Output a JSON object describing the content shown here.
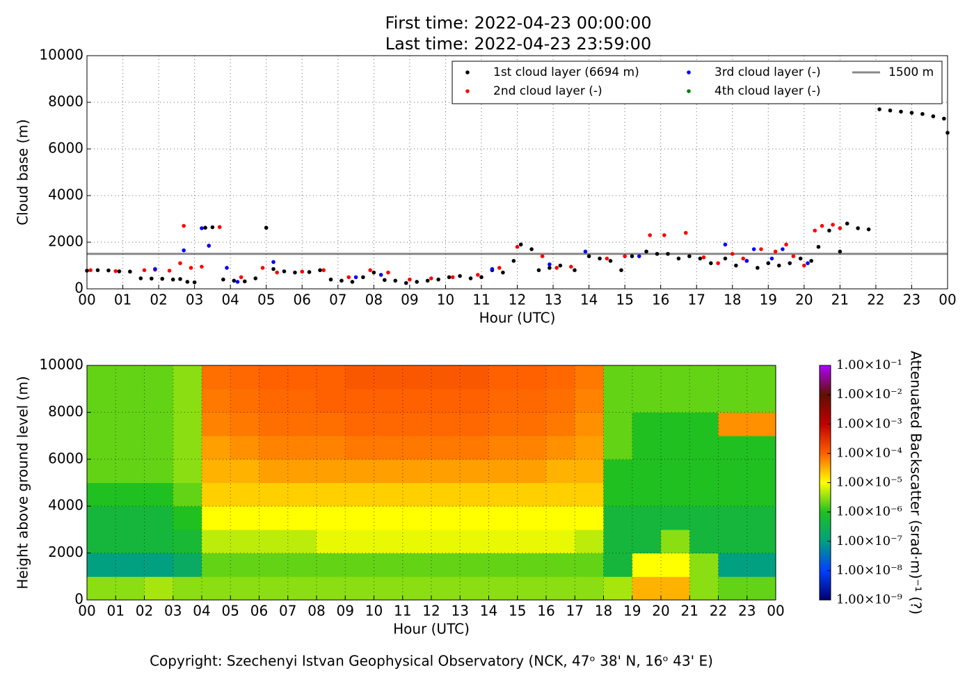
{
  "title_lines": [
    "First time: 2022-04-23 00:00:00",
    "Last time: 2022-04-23 23:59:00"
  ],
  "footer": "Copyright: Szechenyi Istvan Geophysical Observatory (NCK, 47ᵒ  38' N, 16ᵒ  43' E)",
  "chart_data": [
    {
      "type": "scatter",
      "xlabel": "Hour (UTC)",
      "ylabel": "Cloud base (m)",
      "xlim": [
        0,
        24
      ],
      "ylim": [
        0,
        10000
      ],
      "xticks": [
        {
          "value": 0,
          "label": "00"
        },
        {
          "value": 1,
          "label": "01"
        },
        {
          "value": 2,
          "label": "02"
        },
        {
          "value": 3,
          "label": "03"
        },
        {
          "value": 4,
          "label": "04"
        },
        {
          "value": 5,
          "label": "05"
        },
        {
          "value": 6,
          "label": "06"
        },
        {
          "value": 7,
          "label": "07"
        },
        {
          "value": 8,
          "label": "08"
        },
        {
          "value": 9,
          "label": "09"
        },
        {
          "value": 10,
          "label": "10"
        },
        {
          "value": 11,
          "label": "11"
        },
        {
          "value": 12,
          "label": "12"
        },
        {
          "value": 13,
          "label": "13"
        },
        {
          "value": 14,
          "label": "14"
        },
        {
          "value": 15,
          "label": "15"
        },
        {
          "value": 16,
          "label": "16"
        },
        {
          "value": 17,
          "label": "17"
        },
        {
          "value": 18,
          "label": "18"
        },
        {
          "value": 19,
          "label": "19"
        },
        {
          "value": 20,
          "label": "20"
        },
        {
          "value": 21,
          "label": "21"
        },
        {
          "value": 22,
          "label": "22"
        },
        {
          "value": 23,
          "label": "23"
        },
        {
          "value": 24,
          "label": "00"
        }
      ],
      "yticks": [
        0,
        2000,
        4000,
        6000,
        8000,
        10000
      ],
      "grid": true,
      "legend": "upper right",
      "reference_line": {
        "value": 1500,
        "label": "1500 m",
        "color": "#888888"
      },
      "series": [
        {
          "name": "1st cloud layer (6694 m)",
          "color": "#000000",
          "x": [
            0,
            0.3,
            0.6,
            0.9,
            1.2,
            1.5,
            1.8,
            2.1,
            2.4,
            2.6,
            2.8,
            3.0,
            3.3,
            3.5,
            3.8,
            4.1,
            4.4,
            4.7,
            5.0,
            5.2,
            5.5,
            5.8,
            6.2,
            6.5,
            6.8,
            7.1,
            7.4,
            7.7,
            8.0,
            8.3,
            8.6,
            8.9,
            9.2,
            9.5,
            9.8,
            10.1,
            10.4,
            10.7,
            11.0,
            11.3,
            11.6,
            11.9,
            12.1,
            12.4,
            12.6,
            12.9,
            13.2,
            13.6,
            14.0,
            14.3,
            14.6,
            14.9,
            15.2,
            15.6,
            15.9,
            16.2,
            16.5,
            16.8,
            17.1,
            17.4,
            17.8,
            18.1,
            18.4,
            18.7,
            19.0,
            19.3,
            19.6,
            19.9,
            20.2,
            20.4,
            20.7,
            21.0,
            21.2,
            21.5,
            21.8,
            22.1,
            22.4,
            22.7,
            23.0,
            23.3,
            23.6,
            23.9,
            24.0
          ],
          "values": [
            780,
            800,
            790,
            750,
            740,
            450,
            440,
            430,
            400,
            420,
            300,
            280,
            2620,
            2640,
            400,
            350,
            320,
            450,
            2620,
            850,
            750,
            700,
            720,
            800,
            400,
            350,
            300,
            500,
            700,
            380,
            350,
            250,
            300,
            350,
            400,
            500,
            550,
            450,
            500,
            800,
            700,
            1200,
            1900,
            1700,
            800,
            900,
            1000,
            800,
            1400,
            1300,
            1200,
            800,
            1400,
            1600,
            1500,
            1500,
            1300,
            1400,
            1300,
            1100,
            1300,
            1000,
            1200,
            900,
            1100,
            1000,
            1100,
            1300,
            1200,
            1800,
            2500,
            1600,
            2800,
            2600,
            2550,
            7700,
            7650,
            7600,
            7550,
            7500,
            7400,
            7300,
            6694
          ]
        },
        {
          "name": "2nd cloud layer (-)",
          "color": "#ff0000",
          "x": [
            0.1,
            0.8,
            1.6,
            1.9,
            2.3,
            2.6,
            2.7,
            2.9,
            3.2,
            3.4,
            3.7,
            4.3,
            4.9,
            5.3,
            6.0,
            6.6,
            7.3,
            7.9,
            8.4,
            9.0,
            9.6,
            10.2,
            10.9,
            11.5,
            12.0,
            12.7,
            13.1,
            13.5,
            14.5,
            15.0,
            15.7,
            16.1,
            16.7,
            17.2,
            17.6,
            18.0,
            18.3,
            18.8,
            19.2,
            19.5,
            19.7,
            20.0,
            20.3,
            20.5,
            20.8,
            21.0
          ],
          "values": [
            800,
            760,
            800,
            820,
            780,
            1100,
            2700,
            900,
            950,
            1850,
            2650,
            500,
            900,
            700,
            740,
            800,
            500,
            800,
            700,
            400,
            450,
            500,
            600,
            900,
            1800,
            1400,
            900,
            950,
            1300,
            1400,
            2300,
            2300,
            2400,
            1350,
            1100,
            1500,
            1300,
            1700,
            1600,
            1900,
            1400,
            1000,
            2500,
            2700,
            2750,
            2600
          ]
        },
        {
          "name": "3rd cloud layer (-)",
          "color": "#0000ff",
          "x": [
            1.9,
            2.7,
            3.2,
            3.4,
            3.9,
            4.2,
            5.2,
            7.5,
            8.2,
            11.3,
            12.9,
            13.9,
            15.4,
            17.8,
            18.4,
            18.6,
            19.1,
            19.4,
            20.1
          ],
          "values": [
            850,
            1650,
            2600,
            1850,
            900,
            300,
            1150,
            500,
            600,
            850,
            1050,
            1600,
            1400,
            1900,
            1200,
            1700,
            1300,
            1700,
            1100
          ]
        },
        {
          "name": "4th cloud layer (-)",
          "color": "#008000",
          "x": [],
          "values": []
        }
      ]
    },
    {
      "type": "heatmap",
      "xlabel": "Hour (UTC)",
      "ylabel": "Height above ground level (m)",
      "xlim": [
        0,
        24
      ],
      "ylim": [
        0,
        10000
      ],
      "xticks": [
        {
          "value": 0,
          "label": "00"
        },
        {
          "value": 1,
          "label": "01"
        },
        {
          "value": 2,
          "label": "02"
        },
        {
          "value": 3,
          "label": "03"
        },
        {
          "value": 4,
          "label": "04"
        },
        {
          "value": 5,
          "label": "05"
        },
        {
          "value": 6,
          "label": "06"
        },
        {
          "value": 7,
          "label": "07"
        },
        {
          "value": 8,
          "label": "08"
        },
        {
          "value": 9,
          "label": "09"
        },
        {
          "value": 10,
          "label": "10"
        },
        {
          "value": 11,
          "label": "11"
        },
        {
          "value": 12,
          "label": "12"
        },
        {
          "value": 13,
          "label": "13"
        },
        {
          "value": 14,
          "label": "14"
        },
        {
          "value": 15,
          "label": "15"
        },
        {
          "value": 16,
          "label": "16"
        },
        {
          "value": 17,
          "label": "17"
        },
        {
          "value": 18,
          "label": "18"
        },
        {
          "value": 19,
          "label": "19"
        },
        {
          "value": 20,
          "label": "20"
        },
        {
          "value": 21,
          "label": "21"
        },
        {
          "value": 22,
          "label": "22"
        },
        {
          "value": 23,
          "label": "23"
        },
        {
          "value": 24,
          "label": "00"
        }
      ],
      "yticks": [
        0,
        2000,
        4000,
        6000,
        8000,
        10000
      ],
      "grid": true,
      "xbins": [
        0,
        1,
        2,
        3,
        4,
        5,
        6,
        7,
        8,
        9,
        10,
        11,
        12,
        13,
        14,
        15,
        16,
        17,
        18,
        19,
        20,
        21,
        22,
        23,
        24
      ],
      "ybins": [
        0,
        1000,
        2000,
        3000,
        4000,
        5000,
        6000,
        7000,
        8000,
        9000,
        10000
      ],
      "z": [
        [
          3e-06,
          3e-06,
          4e-06,
          3e-06,
          3e-06,
          3e-06,
          3e-06,
          3e-06,
          3e-06,
          3e-06,
          3e-06,
          3e-06,
          3e-06,
          3e-06,
          3e-06,
          3e-06,
          3e-06,
          3e-06,
          4e-06,
          3e-05,
          3e-05,
          3e-06,
          2e-06,
          2e-06
        ],
        [
          1e-07,
          1e-07,
          1e-07,
          2e-07,
          2e-06,
          2e-06,
          2e-06,
          2e-06,
          2e-06,
          2e-06,
          2e-06,
          2e-06,
          2e-06,
          2e-06,
          2e-06,
          2e-06,
          2e-06,
          2e-06,
          5e-07,
          1e-05,
          1e-05,
          3e-06,
          1e-07,
          1e-07
        ],
        [
          5e-07,
          5e-07,
          5e-07,
          6e-07,
          5e-06,
          5e-06,
          5e-06,
          5e-06,
          8e-06,
          8e-06,
          8e-06,
          8e-06,
          8e-06,
          8e-06,
          8e-06,
          8e-06,
          8e-06,
          5e-06,
          5e-07,
          5e-07,
          3e-06,
          5e-07,
          5e-07,
          5e-07
        ],
        [
          5e-07,
          5e-07,
          5e-07,
          1e-06,
          1e-05,
          1e-05,
          1e-05,
          1e-05,
          1e-05,
          1e-05,
          1e-05,
          1e-05,
          1e-05,
          1e-05,
          1e-05,
          1e-05,
          1e-05,
          1e-05,
          5e-07,
          5e-07,
          5e-07,
          5e-07,
          5e-07,
          5e-07
        ],
        [
          1e-06,
          1e-06,
          1e-06,
          2e-06,
          2e-05,
          2e-05,
          2e-05,
          2e-05,
          2e-05,
          2e-05,
          2e-05,
          2e-05,
          2e-05,
          2e-05,
          2e-05,
          2e-05,
          2e-05,
          2e-05,
          1e-06,
          1e-06,
          1e-06,
          1e-06,
          1e-06,
          1e-06
        ],
        [
          2e-06,
          2e-06,
          2e-06,
          3e-06,
          3e-05,
          3e-05,
          4e-05,
          4e-05,
          4e-05,
          4e-05,
          4e-05,
          4e-05,
          4e-05,
          4e-05,
          4e-05,
          4e-05,
          3e-05,
          3e-05,
          1e-06,
          1e-06,
          1e-06,
          1e-06,
          1e-06,
          1e-06
        ],
        [
          2e-06,
          2e-06,
          2e-06,
          3e-06,
          4e-05,
          5e-05,
          6e-05,
          6e-05,
          6e-05,
          7e-05,
          7e-05,
          7e-05,
          7e-05,
          7e-05,
          6e-05,
          6e-05,
          5e-05,
          4e-05,
          2e-06,
          1e-06,
          1e-06,
          1e-06,
          1e-06,
          1e-06
        ],
        [
          2e-06,
          2e-06,
          2e-06,
          3e-06,
          6e-05,
          7e-05,
          8e-05,
          8e-05,
          8e-05,
          9e-05,
          9e-05,
          9e-05,
          9e-05,
          9e-05,
          8e-05,
          8e-05,
          7e-05,
          5e-05,
          2e-06,
          1e-06,
          1e-06,
          1e-06,
          5e-05,
          5e-05
        ],
        [
          2e-06,
          2e-06,
          2e-06,
          3e-06,
          7e-05,
          8e-05,
          9e-05,
          9e-05,
          0.0001,
          0.0001,
          0.0001,
          0.0001,
          0.0001,
          0.0001,
          9e-05,
          9e-05,
          8e-05,
          6e-05,
          2e-06,
          2e-06,
          2e-06,
          2e-06,
          2e-06,
          2e-06
        ],
        [
          2e-06,
          2e-06,
          2e-06,
          3e-06,
          8e-05,
          9e-05,
          0.0001,
          0.0001,
          0.0001,
          0.00012,
          0.00012,
          0.00012,
          0.00012,
          0.00012,
          0.0001,
          0.0001,
          9e-05,
          7e-05,
          2e-06,
          2e-06,
          2e-06,
          2e-06,
          2e-06,
          2e-06
        ]
      ],
      "colorbar": {
        "label": "Attenuated Backscatter (srad·m)⁻¹ (?)",
        "log": true,
        "clim": [
          1e-09,
          0.1
        ],
        "colormap": [
          "#000070",
          "#0040ff",
          "#00a080",
          "#20c020",
          "#ffff00",
          "#ff6000",
          "#c00000",
          "#601000",
          "#b000ff"
        ],
        "ticks": [
          {
            "value": 1e-09,
            "label": "1.00×10⁻⁹"
          },
          {
            "value": 1e-08,
            "label": "1.00×10⁻⁸"
          },
          {
            "value": 1e-07,
            "label": "1.00×10⁻⁷"
          },
          {
            "value": 1e-06,
            "label": "1.00×10⁻⁶"
          },
          {
            "value": 1e-05,
            "label": "1.00×10⁻⁵"
          },
          {
            "value": 0.0001,
            "label": "1.00×10⁻⁴"
          },
          {
            "value": 0.001,
            "label": "1.00×10⁻³"
          },
          {
            "value": 0.01,
            "label": "1.00×10⁻²"
          },
          {
            "value": 0.1,
            "label": "1.00×10⁻¹"
          }
        ]
      }
    }
  ]
}
